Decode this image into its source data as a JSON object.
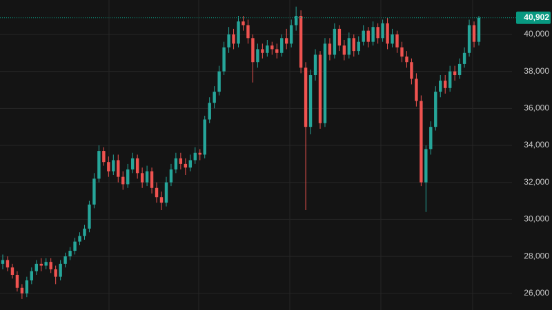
{
  "chart_data": {
    "type": "candlestick",
    "up_color": "#26a69a",
    "down_color": "#ef5350",
    "ylim": [
      25100,
      41860
    ],
    "yticks": [
      {
        "value": 26000,
        "label": "26,000"
      },
      {
        "value": 28000,
        "label": "28,000"
      },
      {
        "value": 30000,
        "label": "30,000"
      },
      {
        "value": 32000,
        "label": "32,000"
      },
      {
        "value": 34000,
        "label": "34,000"
      },
      {
        "value": 36000,
        "label": "36,000"
      },
      {
        "value": 38000,
        "label": "38,000"
      },
      {
        "value": 40000,
        "label": "40,000"
      }
    ],
    "grid": true,
    "last_price": {
      "value": 40902,
      "label": "40,902",
      "color": "#089981"
    },
    "open": [
      27600,
      27800,
      27400,
      27000,
      26300,
      26000,
      26700,
      27200,
      27600,
      27500,
      27700,
      27300,
      26900,
      27600,
      28000,
      28300,
      28800,
      29100,
      29500,
      30800,
      32200,
      33700,
      33100,
      32600,
      33200,
      32300,
      31900,
      32700,
      33300,
      32500,
      32000,
      32600,
      31700,
      31200,
      30900,
      32000,
      32700,
      33300,
      33000,
      32800,
      33200,
      33600,
      33500,
      35400,
      36300,
      36900,
      38000,
      39300,
      40000,
      39500,
      40700,
      40500,
      39800,
      38500,
      39200,
      39000,
      39400,
      39200,
      39000,
      39800,
      39500,
      40500,
      41000,
      38200,
      35000,
      37800,
      38900,
      35200,
      39500,
      38900,
      40300,
      39400,
      38900,
      39800,
      39100,
      39600,
      40200,
      39600,
      40400,
      39800,
      40600,
      39500,
      40000,
      39300,
      38800,
      38500,
      37600,
      36400,
      32000,
      33800,
      35000,
      36900,
      37500,
      37100,
      38000,
      37800,
      38400,
      39000,
      40500,
      39600
    ],
    "high": [
      28100,
      28000,
      27600,
      27200,
      26500,
      26900,
      27400,
      27800,
      27900,
      27900,
      27900,
      27500,
      27800,
      28200,
      28500,
      29000,
      29300,
      29700,
      31000,
      32500,
      34000,
      33900,
      33400,
      33500,
      33500,
      32600,
      33000,
      33600,
      33500,
      32800,
      32900,
      32800,
      32000,
      31500,
      32300,
      33000,
      33600,
      33600,
      33300,
      33500,
      33900,
      33800,
      35600,
      36600,
      37200,
      38300,
      39600,
      40400,
      40300,
      41000,
      41000,
      40800,
      40000,
      39500,
      39500,
      39700,
      39600,
      39500,
      40000,
      40300,
      40800,
      41500,
      41300,
      38500,
      38100,
      39200,
      39100,
      39800,
      39800,
      40600,
      40500,
      39700,
      40100,
      40000,
      39900,
      40500,
      40400,
      40700,
      40600,
      40800,
      40900,
      40300,
      40200,
      39600,
      39100,
      38700,
      37900,
      36700,
      34000,
      35300,
      37200,
      37800,
      37800,
      38300,
      38300,
      38700,
      39300,
      40800,
      40700,
      41000
    ],
    "low": [
      27300,
      27200,
      26800,
      26100,
      25700,
      25800,
      26500,
      27000,
      27200,
      27300,
      27100,
      26500,
      26700,
      27400,
      27800,
      28100,
      28600,
      28900,
      29300,
      30600,
      32000,
      32900,
      32300,
      32400,
      32000,
      31600,
      31700,
      32500,
      32200,
      31700,
      31800,
      31400,
      30900,
      30500,
      30700,
      31800,
      32500,
      32700,
      32400,
      32600,
      33000,
      33200,
      33300,
      35200,
      36000,
      36700,
      37800,
      39000,
      39200,
      39300,
      40200,
      39500,
      37400,
      38200,
      38700,
      38800,
      38900,
      38700,
      38800,
      39200,
      39300,
      40200,
      37900,
      30500,
      34600,
      37500,
      34900,
      35000,
      38600,
      38700,
      39100,
      38600,
      38700,
      38800,
      38900,
      39400,
      39300,
      39400,
      39500,
      39600,
      39200,
      39300,
      39000,
      38500,
      38200,
      37300,
      36100,
      31800,
      30400,
      33500,
      34800,
      36600,
      36800,
      36900,
      37500,
      37600,
      38200,
      38800,
      39300,
      39400
    ],
    "close": [
      27800,
      27400,
      27000,
      26300,
      26000,
      26700,
      27200,
      27600,
      27500,
      27700,
      27300,
      26900,
      27600,
      28000,
      28300,
      28800,
      29100,
      29500,
      30800,
      32200,
      33700,
      33100,
      32600,
      33200,
      32300,
      31900,
      32700,
      33300,
      32500,
      32000,
      32600,
      31700,
      31200,
      30900,
      32000,
      32700,
      33300,
      33000,
      32800,
      33200,
      33600,
      33500,
      35400,
      36300,
      36900,
      38000,
      39300,
      40000,
      39500,
      40700,
      40500,
      39800,
      38500,
      39200,
      39000,
      39400,
      39200,
      39000,
      39800,
      39500,
      40500,
      41000,
      38200,
      35000,
      37800,
      38900,
      35200,
      39500,
      38900,
      40300,
      39400,
      38900,
      39800,
      39100,
      39600,
      40200,
      39600,
      40400,
      39800,
      40600,
      39500,
      40000,
      39300,
      38800,
      38500,
      37600,
      36400,
      32000,
      33800,
      35000,
      36900,
      37500,
      37100,
      38000,
      37800,
      38400,
      39000,
      40500,
      39600,
      40902
    ]
  }
}
